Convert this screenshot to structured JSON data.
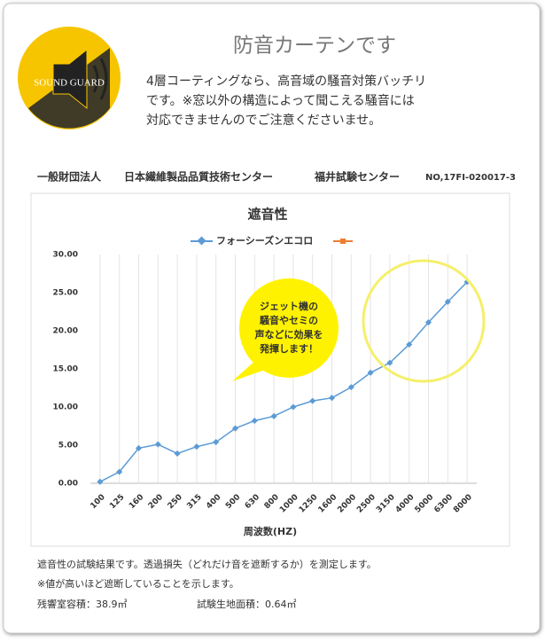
{
  "header": {
    "logo": "SOUND GUARD",
    "title": "防音カーテンです",
    "description": [
      "4層コーティングなら、高音域の騒音対策バッチリ",
      "です。※窓以外の構造によって聞こえる騒音には",
      "対応できませんのでご注意くださいませ。"
    ]
  },
  "lab": [
    "一般財団法人",
    "日本繊維製品品質技術センター",
    "福井試験センター",
    "NO,17FI-020017-3"
  ],
  "chart_data": {
    "type": "line",
    "title": "遮音性",
    "x_label": "周波数(HZ)",
    "categories": [
      "100",
      "125",
      "160",
      "200",
      "250",
      "315",
      "400",
      "500",
      "630",
      "800",
      "1000",
      "1250",
      "1600",
      "2000",
      "2500",
      "3150",
      "4000",
      "5000",
      "6300",
      "8000"
    ],
    "series": [
      {
        "name": "フォーシーズンエコロ",
        "color": "#5b9bd5",
        "values": [
          0.2,
          1.5,
          4.6,
          5.1,
          3.9,
          4.8,
          5.4,
          7.2,
          8.2,
          8.8,
          10.0,
          10.8,
          11.2,
          12.6,
          14.5,
          15.8,
          18.2,
          21.1,
          23.8,
          26.4
        ]
      }
    ],
    "ylim": [
      0,
      30
    ],
    "yticks": [
      {
        "value": 0,
        "label": "0.00"
      },
      {
        "value": 5,
        "label": "5.00"
      },
      {
        "value": 10,
        "label": "10.00"
      },
      {
        "value": 15,
        "label": "15.00"
      },
      {
        "value": 20,
        "label": "20.00"
      },
      {
        "value": 25,
        "label": "25.00"
      },
      {
        "value": 30,
        "label": "30.00"
      }
    ],
    "grid": true,
    "annotation": [
      "ジェット機の",
      "騒音やセミの",
      "声などに効果を",
      "発揮します！"
    ]
  },
  "notes": [
    "遮音性の試験結果です。透過損失（どれだけ音を遮断するか）を測定します。",
    "※値が高いほど遮断していることを示します。"
  ],
  "specs": [
    "残響室容積：38.9㎥",
    "試験生地面積：0.64㎡"
  ]
}
